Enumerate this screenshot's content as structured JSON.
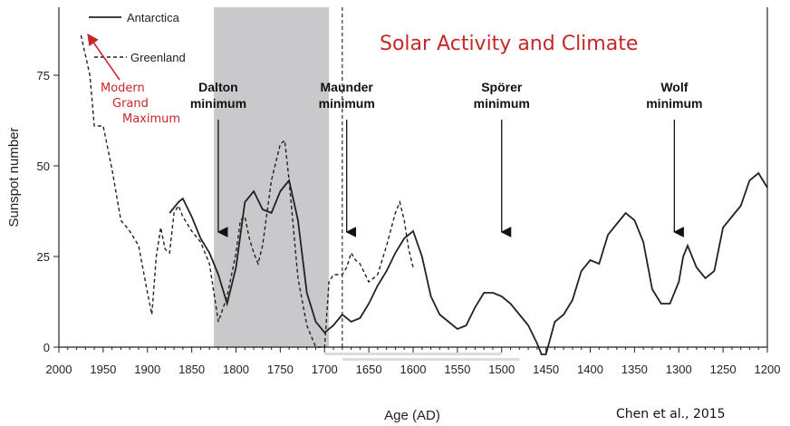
{
  "chart_data": {
    "type": "line",
    "title": "Solar Activity and Climate",
    "xlabel": "Age (AD)",
    "ylabel": "Sunspot number",
    "xlim": [
      2000,
      1200
    ],
    "ylim": [
      0,
      90
    ],
    "x_ticks": [
      2000,
      1950,
      1900,
      1850,
      1800,
      1750,
      1700,
      1650,
      1600,
      1550,
      1500,
      1450,
      1400,
      1350,
      1300,
      1250,
      1200
    ],
    "y_ticks": [
      0,
      25,
      50,
      75
    ],
    "legend": [
      "Antarctica",
      "Greenland"
    ],
    "series": [
      {
        "name": "Antarctica",
        "style": "solid",
        "color": "#222222",
        "x": [
          1875,
          1865,
          1860,
          1850,
          1840,
          1830,
          1820,
          1810,
          1800,
          1790,
          1780,
          1770,
          1760,
          1750,
          1740,
          1730,
          1720,
          1710,
          1700,
          1690,
          1680,
          1670,
          1660,
          1650,
          1640,
          1630,
          1620,
          1610,
          1600,
          1590,
          1580,
          1570,
          1560,
          1550,
          1540,
          1530,
          1520,
          1510,
          1500,
          1490,
          1480,
          1470,
          1460,
          1455,
          1450,
          1440,
          1430,
          1420,
          1410,
          1400,
          1390,
          1380,
          1370,
          1360,
          1350,
          1340,
          1330,
          1320,
          1310,
          1300,
          1295,
          1290,
          1280,
          1270,
          1260,
          1250,
          1240,
          1230,
          1220,
          1210,
          1200
        ],
        "y": [
          37,
          40,
          41,
          36,
          30,
          26,
          20,
          12,
          22,
          40,
          43,
          38,
          37,
          43,
          46,
          35,
          15,
          7,
          4,
          6,
          9,
          7,
          8,
          12,
          17,
          21,
          26,
          30,
          32,
          25,
          14,
          9,
          7,
          5,
          6,
          11,
          15,
          15,
          14,
          12,
          9,
          6,
          1,
          -2,
          -2,
          7,
          9,
          13,
          21,
          24,
          23,
          31,
          34,
          37,
          35,
          29,
          16,
          12,
          12,
          18,
          25,
          28,
          22,
          19,
          21,
          33,
          36,
          39,
          46,
          48,
          44
        ]
      },
      {
        "name": "Greenland",
        "style": "dashed",
        "color": "#222222",
        "x": [
          1975,
          1965,
          1960,
          1950,
          1940,
          1930,
          1920,
          1910,
          1900,
          1895,
          1890,
          1885,
          1880,
          1875,
          1870,
          1865,
          1860,
          1850,
          1840,
          1830,
          1820,
          1810,
          1800,
          1795,
          1790,
          1785,
          1780,
          1775,
          1770,
          1760,
          1750,
          1745,
          1740,
          1730,
          1720,
          1715,
          1710,
          1705,
          1700,
          1695,
          1690,
          1685,
          1680,
          1675,
          1670,
          1665,
          1660,
          1650,
          1640,
          1630,
          1620,
          1615,
          1610,
          1605,
          1600
        ],
        "y": [
          86,
          75,
          61,
          61,
          49,
          35,
          32,
          28,
          15,
          9,
          25,
          33,
          27,
          26,
          37,
          39,
          36,
          32,
          29,
          23,
          7,
          14,
          26,
          35,
          36,
          30,
          26,
          23,
          28,
          46,
          56,
          57,
          46,
          19,
          6,
          3,
          0,
          0,
          0,
          18,
          20,
          20,
          20,
          22,
          26,
          24,
          23,
          18,
          20,
          28,
          37,
          40,
          35,
          27,
          22
        ]
      }
    ],
    "shaded_region": {
      "x_from": 1825,
      "x_to": 1695,
      "color": "#c9c9cb"
    },
    "vertical_dashed_line": {
      "x": 1680
    },
    "annotations": [
      {
        "label_lines": [
          "Dalton",
          "minimum"
        ],
        "x": 1820,
        "arrow_y": 31
      },
      {
        "label_lines": [
          "Maunder",
          "minimum"
        ],
        "x": 1675,
        "arrow_y": 31
      },
      {
        "label_lines": [
          "Spörer",
          "minimum"
        ],
        "x": 1500,
        "arrow_y": 31
      },
      {
        "label_lines": [
          "Wolf",
          "minimum"
        ],
        "x": 1305,
        "arrow_y": 31
      }
    ],
    "modern_label": [
      "Modern",
      "Grand",
      "Maximum"
    ],
    "credit": "Chen et al., 2015"
  }
}
